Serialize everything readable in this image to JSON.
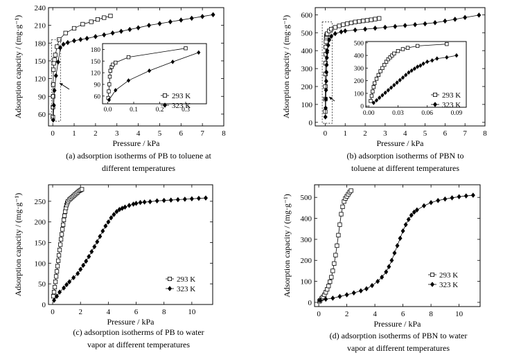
{
  "colors": {
    "ink": "#000000",
    "background": "#ffffff"
  },
  "chart_data": [
    {
      "id": "a",
      "type": "scatter",
      "caption_lines": [
        "(a) adsorption isotherms of PB to toluene at",
        "different temperatures"
      ],
      "xlabel": "Pressure / kPa",
      "ylabel": "Adsorption capacity / (mg·g⁻¹)",
      "xlim": [
        -0.2,
        8
      ],
      "ylim": [
        40,
        240
      ],
      "xticks": [
        0,
        1,
        2,
        3,
        4,
        5,
        6,
        7,
        8
      ],
      "yticks": [
        60,
        90,
        120,
        150,
        180,
        210,
        240
      ],
      "series": [
        {
          "name": "293 K",
          "marker": "square-open",
          "x": [
            0.005,
            0.01,
            0.015,
            0.02,
            0.03,
            0.05,
            0.08,
            0.12,
            0.2,
            0.3,
            0.6,
            1.0,
            1.4,
            1.8,
            2.1,
            2.4,
            2.7
          ],
          "y": [
            55,
            72,
            90,
            110,
            135,
            146,
            152,
            160,
            174,
            186,
            197,
            205,
            212,
            216,
            220,
            223,
            226
          ]
        },
        {
          "name": "323 K",
          "marker": "diamond-filled",
          "x": [
            0.02,
            0.05,
            0.08,
            0.15,
            0.25,
            0.35,
            0.5,
            0.7,
            1.0,
            1.3,
            1.6,
            2.0,
            2.4,
            2.8,
            3.2,
            3.6,
            4.0,
            4.5,
            5.0,
            5.5,
            6.0,
            6.5,
            7.0,
            7.5
          ],
          "y": [
            50,
            75,
            100,
            125,
            148,
            172,
            178,
            181,
            184,
            186,
            188,
            191,
            194,
            197,
            200,
            203,
            206,
            210,
            213,
            216,
            219,
            222,
            225,
            228
          ]
        }
      ],
      "inset": {
        "xlim": [
          -0.02,
          0.38
        ],
        "ylim": [
          40,
          195
        ],
        "xticks": [
          0.0,
          0.1,
          0.2,
          0.3
        ],
        "yticks": [
          60,
          90,
          120,
          150,
          180
        ],
        "series": [
          {
            "name": "293 K",
            "marker": "square-open",
            "x": [
              0.002,
              0.004,
              0.006,
              0.008,
              0.01,
              0.015,
              0.02,
              0.03,
              0.08,
              0.3
            ],
            "y": [
              55,
              72,
              90,
              110,
              125,
              135,
              141,
              146,
              160,
              183
            ]
          },
          {
            "name": "323 K",
            "marker": "diamond-filled",
            "x": [
              0.005,
              0.03,
              0.08,
              0.16,
              0.25,
              0.35
            ],
            "y": [
              50,
              75,
              100,
              125,
              148,
              172
            ]
          }
        ]
      }
    },
    {
      "id": "b",
      "type": "scatter",
      "caption_lines": [
        "(b) adsorption isotherms of PBN to",
        "toluene at different temperatures"
      ],
      "xlabel": "Pressure / kPa",
      "ylabel": "Adsorption capacity / (mg·g⁻¹)",
      "xlim": [
        -0.5,
        8
      ],
      "ylim": [
        -20,
        640
      ],
      "xticks": [
        0,
        1,
        2,
        3,
        4,
        5,
        6,
        7,
        8
      ],
      "yticks": [
        0,
        100,
        200,
        300,
        400,
        500,
        600
      ],
      "series": [
        {
          "name": "293 K",
          "marker": "square-open",
          "x": [
            0.003,
            0.006,
            0.01,
            0.015,
            0.02,
            0.025,
            0.03,
            0.04,
            0.05,
            0.06,
            0.08,
            0.1,
            0.2,
            0.3,
            0.5,
            0.7,
            0.9,
            1.1,
            1.3,
            1.5,
            1.7,
            1.9,
            2.1,
            2.3,
            2.5,
            2.7
          ],
          "y": [
            60,
            130,
            200,
            270,
            330,
            380,
            420,
            450,
            470,
            480,
            490,
            495,
            510,
            520,
            530,
            538,
            545,
            550,
            555,
            560,
            563,
            566,
            569,
            572,
            576,
            580
          ]
        },
        {
          "name": "323 K",
          "marker": "diamond-filled",
          "x": [
            0.01,
            0.02,
            0.03,
            0.04,
            0.05,
            0.06,
            0.07,
            0.08,
            0.09,
            0.1,
            0.15,
            0.2,
            0.3,
            0.5,
            0.8,
            1.0,
            1.5,
            2.0,
            2.5,
            3.0,
            3.5,
            4.0,
            4.5,
            5.0,
            5.5,
            6.0,
            6.5,
            7.0,
            7.7
          ],
          "y": [
            30,
            80,
            130,
            180,
            230,
            280,
            320,
            360,
            390,
            400,
            430,
            460,
            480,
            495,
            505,
            510,
            515,
            520,
            525,
            530,
            535,
            540,
            545,
            550,
            556,
            565,
            575,
            585,
            598
          ]
        }
      ],
      "inset": {
        "xlim": [
          -0.003,
          0.1
        ],
        "ylim": [
          -10,
          510
        ],
        "xticks": [
          0.0,
          0.03,
          0.06,
          0.09
        ],
        "yticks": [
          0,
          100,
          200,
          300,
          400,
          500
        ],
        "series": [
          {
            "name": "293 K",
            "marker": "square-open",
            "x": [
              0.002,
              0.003,
              0.004,
              0.005,
              0.006,
              0.008,
              0.01,
              0.012,
              0.014,
              0.016,
              0.018,
              0.02,
              0.022,
              0.024,
              0.026,
              0.03,
              0.035,
              0.04,
              0.05,
              0.08
            ],
            "y": [
              40,
              80,
              115,
              150,
              180,
              215,
              245,
              275,
              300,
              325,
              350,
              370,
              385,
              400,
              415,
              435,
              450,
              460,
              475,
              490
            ]
          },
          {
            "name": "323 K",
            "marker": "diamond-filled",
            "x": [
              0.005,
              0.008,
              0.011,
              0.014,
              0.017,
              0.02,
              0.023,
              0.026,
              0.029,
              0.032,
              0.035,
              0.038,
              0.041,
              0.044,
              0.047,
              0.05,
              0.053,
              0.056,
              0.06,
              0.065,
              0.07,
              0.08,
              0.09
            ],
            "y": [
              25,
              45,
              65,
              85,
              105,
              125,
              145,
              165,
              185,
              205,
              225,
              245,
              265,
              280,
              295,
              310,
              320,
              335,
              350,
              360,
              375,
              385,
              400
            ]
          }
        ]
      }
    },
    {
      "id": "c",
      "type": "scatter",
      "caption_lines": [
        "(c) adsorption isotherms of PB to water",
        "vapor at different temperatures"
      ],
      "xlabel": "Pressure / kPa",
      "ylabel": "Adsorption capacity / (mg·g⁻¹)",
      "xlim": [
        -0.3,
        11.5
      ],
      "ylim": [
        0,
        290
      ],
      "xticks": [
        0,
        2,
        4,
        6,
        8,
        10
      ],
      "yticks": [
        0,
        50,
        100,
        150,
        200,
        250
      ],
      "legend_position": "right",
      "series": [
        {
          "name": "293 K",
          "marker": "square-open",
          "x": [
            0.05,
            0.1,
            0.15,
            0.2,
            0.25,
            0.3,
            0.35,
            0.4,
            0.45,
            0.5,
            0.55,
            0.6,
            0.65,
            0.7,
            0.75,
            0.8,
            0.85,
            0.9,
            0.95,
            1.0,
            1.05,
            1.1,
            1.2,
            1.3,
            1.4,
            1.5,
            1.6,
            1.7,
            1.8,
            1.9,
            2.0,
            2.1
          ],
          "y": [
            20,
            30,
            42,
            55,
            68,
            80,
            93,
            106,
            119,
            132,
            145,
            158,
            170,
            182,
            193,
            205,
            215,
            225,
            234,
            241,
            246,
            250,
            254,
            257,
            260,
            263,
            266,
            269,
            272,
            275,
            277,
            279
          ]
        },
        {
          "name": "323 K",
          "marker": "diamond-filled",
          "x": [
            0.1,
            0.3,
            0.5,
            0.8,
            1.0,
            1.2,
            1.5,
            1.8,
            2.0,
            2.2,
            2.4,
            2.6,
            2.8,
            3.0,
            3.2,
            3.4,
            3.6,
            3.8,
            4.0,
            4.2,
            4.4,
            4.6,
            4.8,
            5.0,
            5.2,
            5.5,
            5.8,
            6.0,
            6.3,
            6.6,
            7.0,
            7.5,
            8.0,
            8.5,
            9.0,
            9.5,
            10.0,
            10.5,
            11.0
          ],
          "y": [
            10,
            20,
            30,
            40,
            48,
            55,
            65,
            75,
            85,
            95,
            105,
            116,
            128,
            140,
            152,
            165,
            178,
            190,
            200,
            210,
            218,
            225,
            230,
            233,
            236,
            240,
            243,
            245,
            247,
            248,
            249,
            251,
            252,
            253,
            254,
            255,
            256,
            257,
            258
          ]
        }
      ]
    },
    {
      "id": "d",
      "type": "scatter",
      "caption_lines": [
        "(d) adsorption isotherms of PBN to water",
        "vapor at different temperatures"
      ],
      "xlabel": "Pressure / kPa",
      "ylabel": "Adsorption capacity / (mg·g⁻¹)",
      "xlim": [
        -0.3,
        11.5
      ],
      "ylim": [
        -20,
        560
      ],
      "xticks": [
        0,
        2,
        4,
        6,
        8,
        10
      ],
      "yticks": [
        0,
        100,
        200,
        300,
        400,
        500
      ],
      "legend_position": "right",
      "series": [
        {
          "name": "293 K",
          "marker": "square-open",
          "x": [
            0.05,
            0.1,
            0.2,
            0.3,
            0.4,
            0.5,
            0.6,
            0.7,
            0.8,
            0.9,
            1.0,
            1.1,
            1.2,
            1.3,
            1.4,
            1.5,
            1.6,
            1.7,
            1.8,
            1.9,
            2.0,
            2.1,
            2.2,
            2.3
          ],
          "y": [
            5,
            10,
            18,
            26,
            36,
            48,
            62,
            78,
            98,
            120,
            150,
            185,
            225,
            270,
            320,
            370,
            420,
            455,
            480,
            495,
            505,
            515,
            525,
            532
          ]
        },
        {
          "name": "323 K",
          "marker": "diamond-filled",
          "x": [
            0.1,
            0.5,
            1.0,
            1.5,
            2.0,
            2.5,
            3.0,
            3.4,
            3.8,
            4.2,
            4.5,
            4.8,
            5.0,
            5.2,
            5.4,
            5.6,
            5.8,
            6.0,
            6.2,
            6.4,
            6.6,
            6.8,
            7.0,
            7.5,
            8.0,
            8.5,
            9.0,
            9.5,
            10.0,
            10.5,
            11.0
          ],
          "y": [
            10,
            15,
            20,
            28,
            36,
            45,
            55,
            65,
            80,
            100,
            120,
            145,
            170,
            200,
            235,
            270,
            305,
            340,
            370,
            395,
            415,
            430,
            440,
            460,
            475,
            485,
            492,
            498,
            503,
            507,
            510
          ]
        }
      ]
    }
  ]
}
